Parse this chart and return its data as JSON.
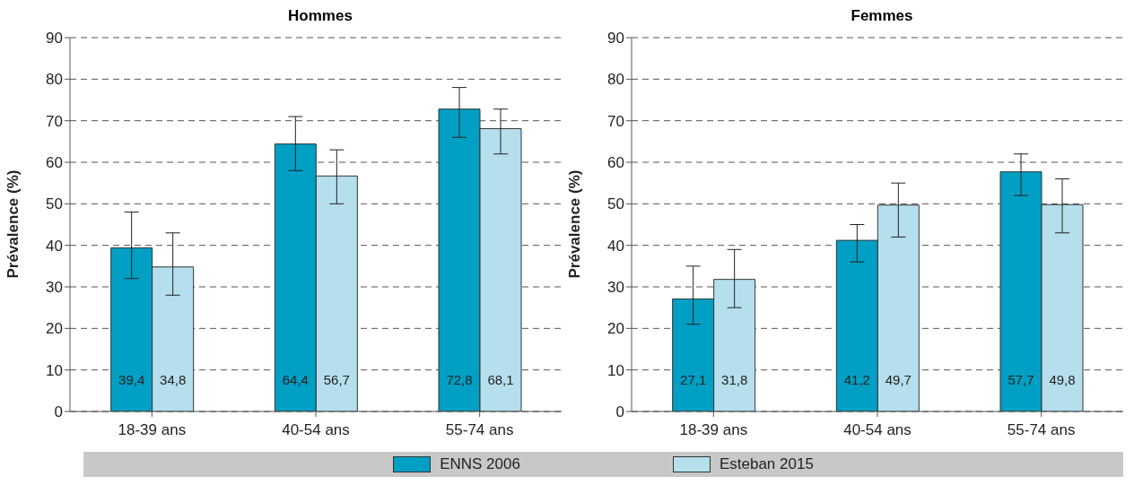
{
  "chart_data": [
    {
      "type": "bar",
      "title": "Hommes",
      "ylabel": "Prévalence (%)",
      "categories": [
        "18-39 ans",
        "40-54 ans",
        "55-74 ans"
      ],
      "series": [
        {
          "name": "ENNS 2006",
          "color": "#009fc3",
          "values": [
            39.4,
            64.4,
            72.8
          ],
          "errors": [
            [
              32,
              48
            ],
            [
              58,
              71
            ],
            [
              66,
              78
            ]
          ],
          "value_labels": [
            "39,4",
            "64,4",
            "72,8"
          ]
        },
        {
          "name": "Esteban 2015",
          "color": "#b5dfec",
          "values": [
            34.8,
            56.7,
            68.1
          ],
          "errors": [
            [
              28,
              43
            ],
            [
              50,
              63
            ],
            [
              62,
              72.8
            ]
          ],
          "value_labels": [
            "34,8",
            "56,7",
            "68,1"
          ]
        }
      ],
      "ylim": [
        0,
        90
      ],
      "yticks": [
        0,
        10,
        20,
        30,
        40,
        50,
        60,
        70,
        80,
        90
      ],
      "grid": "y",
      "legend": "bottom"
    },
    {
      "type": "bar",
      "title": "Femmes",
      "ylabel": "Prévalence (%)",
      "categories": [
        "18-39 ans",
        "40-54 ans",
        "55-74 ans"
      ],
      "series": [
        {
          "name": "ENNS 2006",
          "color": "#009fc3",
          "values": [
            27.1,
            41.2,
            57.7
          ],
          "errors": [
            [
              21,
              35
            ],
            [
              36,
              45
            ],
            [
              52,
              62
            ]
          ],
          "value_labels": [
            "27,1",
            "41,2",
            "57,7"
          ]
        },
        {
          "name": "Esteban 2015",
          "color": "#b5dfec",
          "values": [
            31.8,
            49.7,
            49.8
          ],
          "errors": [
            [
              25,
              39
            ],
            [
              42,
              55
            ],
            [
              43,
              56
            ]
          ],
          "value_labels": [
            "31,8",
            "49,7",
            "49,8"
          ]
        }
      ],
      "ylim": [
        0,
        90
      ],
      "yticks": [
        0,
        10,
        20,
        30,
        40,
        50,
        60,
        70,
        80,
        90
      ],
      "grid": "y",
      "legend": "bottom"
    }
  ]
}
